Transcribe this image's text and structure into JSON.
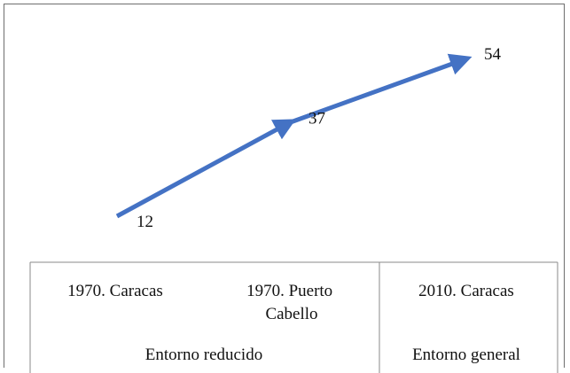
{
  "chart_data": {
    "type": "line",
    "x": [
      "1970. Caracas",
      "1970. Puerto Cabello",
      "2010. Caracas"
    ],
    "values": [
      12,
      37,
      54
    ],
    "data_labels": [
      "12",
      "37",
      "54"
    ],
    "series_color": "#4472c4",
    "arrows": true,
    "x_axis_table": {
      "row1": [
        "1970. Caracas",
        "1970. Puerto Cabello",
        "2010. Caracas"
      ],
      "row2_groups": [
        {
          "label": "Entorno reducido",
          "span": 2
        },
        {
          "label": "Entorno general",
          "span": 1
        }
      ]
    }
  }
}
